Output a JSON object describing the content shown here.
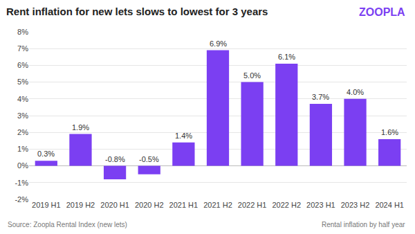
{
  "chart_data": {
    "type": "bar",
    "title": "Rent inflation for new lets slows to lowest for 3 years",
    "logo": "ZOOPLA",
    "source": "Source: Zoopla Rental Index (new lets)",
    "note": "Rental inflation by half year",
    "categories": [
      "2019 H1",
      "2019 H2",
      "2020 H1",
      "2020 H2",
      "2021 H1",
      "2021 H2",
      "2022 H1",
      "2022 H2",
      "2023 H1",
      "2023 H2",
      "2024 H1"
    ],
    "values": [
      0.3,
      1.9,
      -0.8,
      -0.5,
      1.4,
      6.9,
      5.0,
      6.1,
      3.7,
      4.0,
      1.6
    ],
    "value_labels": [
      "0.3%",
      "1.9%",
      "-0.8%",
      "-0.5%",
      "1.4%",
      "6.9%",
      "5.0%",
      "6.1%",
      "3.7%",
      "4.0%",
      "1.6%"
    ],
    "data_labels": true,
    "color": "#7b3ff2",
    "ylim": [
      -2,
      8
    ],
    "yticks": [
      {
        "value": -2,
        "label": "-2%"
      },
      {
        "value": -1,
        "label": "-1%"
      },
      {
        "value": 0,
        "label": "0%"
      },
      {
        "value": 1,
        "label": "1%"
      },
      {
        "value": 2,
        "label": "2%"
      },
      {
        "value": 3,
        "label": "3%"
      },
      {
        "value": 4,
        "label": "4%"
      },
      {
        "value": 5,
        "label": "5%"
      },
      {
        "value": 6,
        "label": "6%"
      },
      {
        "value": 7,
        "label": "7%"
      },
      {
        "value": 8,
        "label": "8%"
      }
    ],
    "grid": true
  }
}
